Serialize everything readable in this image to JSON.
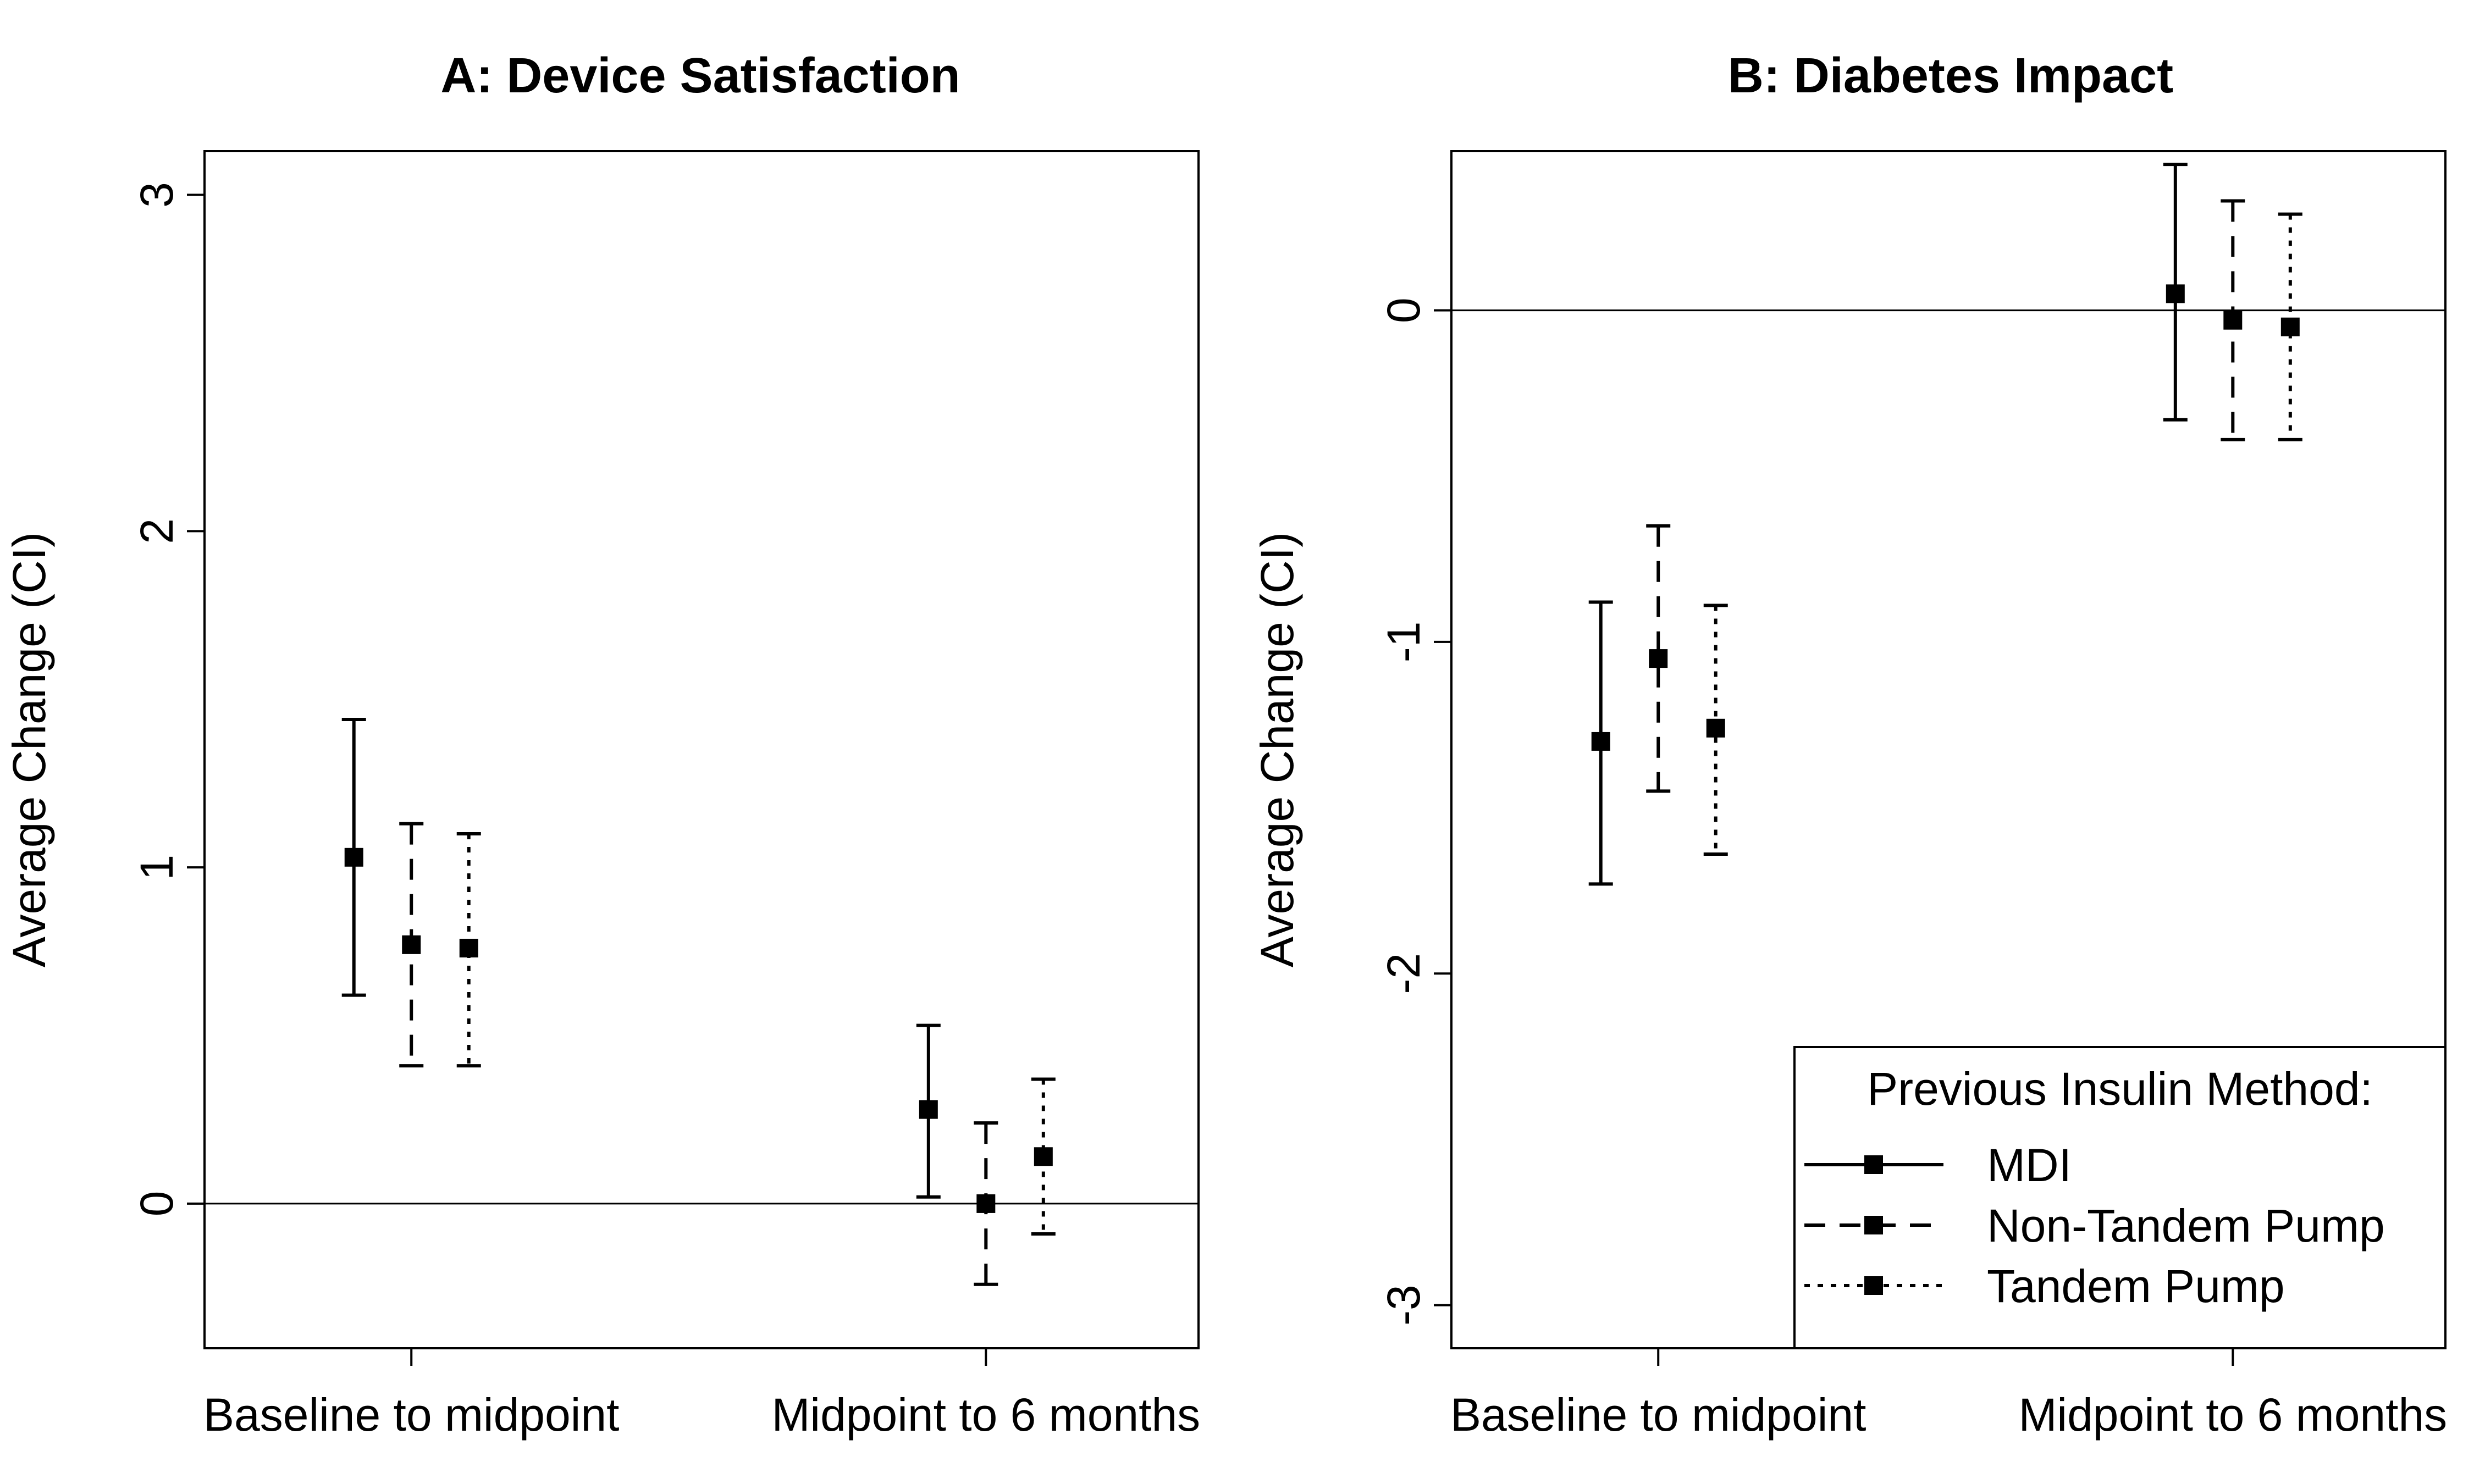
{
  "legend": {
    "title": "Previous Insulin Method:",
    "entries": [
      {
        "name": "MDI",
        "style": "solid"
      },
      {
        "name": "Non-Tandem Pump",
        "style": "dashed"
      },
      {
        "name": "Tandem Pump",
        "style": "dotted"
      }
    ]
  },
  "chart_data": [
    {
      "type": "errorbar",
      "title": "A: Device Satisfaction",
      "xlabel": "",
      "ylabel": "Average Change (CI)",
      "categories": [
        "Baseline to midpoint",
        "Midpoint to 6 months"
      ],
      "xlim": [
        0.64,
        2.37
      ],
      "ylim": [
        -0.43,
        3.13
      ],
      "yticks": [
        0,
        1,
        2,
        3
      ],
      "reference_line": 0,
      "series": [
        {
          "name": "MDI",
          "style": "solid",
          "estimate": [
            1.03,
            0.28
          ],
          "lower": [
            0.62,
            0.02
          ],
          "upper": [
            1.44,
            0.53
          ]
        },
        {
          "name": "Non-Tandem Pump",
          "style": "dashed",
          "estimate": [
            0.77,
            0.0
          ],
          "lower": [
            0.41,
            -0.24
          ],
          "upper": [
            1.13,
            0.24
          ]
        },
        {
          "name": "Tandem Pump",
          "style": "dotted",
          "estimate": [
            0.76,
            0.14
          ],
          "lower": [
            0.41,
            -0.09
          ],
          "upper": [
            1.1,
            0.37
          ]
        }
      ]
    },
    {
      "type": "errorbar",
      "title": "B: Diabetes Impact",
      "xlabel": "",
      "ylabel": "Average Change (CI)",
      "categories": [
        "Baseline to midpoint",
        "Midpoint to 6 months"
      ],
      "xlim": [
        0.64,
        2.37
      ],
      "ylim": [
        -3.13,
        0.48
      ],
      "yticks": [
        -3,
        -2,
        -1,
        0
      ],
      "reference_line": 0,
      "legend_position": "bottom-right",
      "series": [
        {
          "name": "MDI",
          "style": "solid",
          "estimate": [
            -1.3,
            0.05
          ],
          "lower": [
            -1.73,
            -0.33
          ],
          "upper": [
            -0.88,
            0.44
          ]
        },
        {
          "name": "Non-Tandem Pump",
          "style": "dashed",
          "estimate": [
            -1.05,
            -0.03
          ],
          "lower": [
            -1.45,
            -0.39
          ],
          "upper": [
            -0.65,
            0.33
          ]
        },
        {
          "name": "Tandem Pump",
          "style": "dotted",
          "estimate": [
            -1.26,
            -0.05
          ],
          "lower": [
            -1.64,
            -0.39
          ],
          "upper": [
            -0.89,
            0.29
          ]
        }
      ]
    }
  ]
}
